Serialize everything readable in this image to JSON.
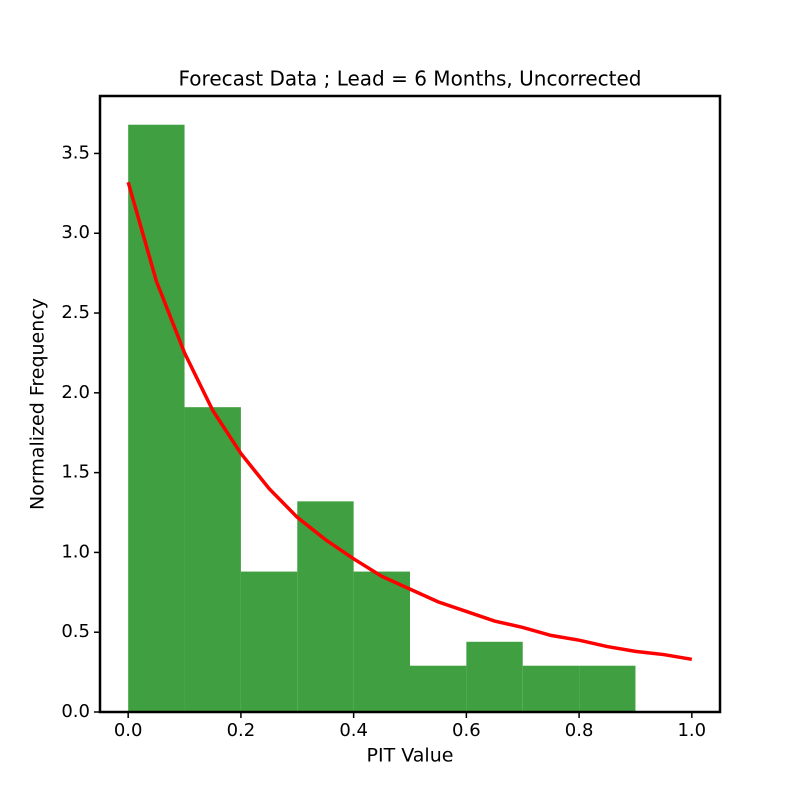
{
  "chart_data": {
    "type": "histogram",
    "title": "Forecast Data ; Lead = 6 Months, Uncorrected",
    "x_label": "PIT Value",
    "y_label": "Normalized Frequency",
    "bins": [
      0,
      0.1,
      0.2,
      0.3,
      0.4,
      0.5,
      0.6,
      0.7,
      0.8,
      0.9
    ],
    "values": [
      3.68,
      1.91,
      0.88,
      1.32,
      0.88,
      0.29,
      0.44,
      0.29,
      0.29
    ],
    "color": "#409f40",
    "fit": {
      "color": "#ff0000",
      "x": [
        0,
        0.05,
        0.1,
        0.15,
        0.2,
        0.25,
        0.3,
        0.35,
        0.4,
        0.45,
        0.5,
        0.55,
        0.6,
        0.65,
        0.7,
        0.75,
        0.8,
        0.85,
        0.9,
        0.95,
        1.0
      ],
      "values": [
        3.32,
        2.7,
        2.25,
        1.89,
        1.62,
        1.4,
        1.22,
        1.08,
        0.96,
        0.85,
        0.77,
        0.69,
        0.63,
        0.57,
        0.53,
        0.48,
        0.45,
        0.41,
        0.38,
        0.36,
        0.33
      ]
    },
    "xlim": [
      -0.05,
      1.05
    ],
    "ylim": [
      0,
      3.86
    ],
    "xticks": [
      {
        "value": 0,
        "label": "0.0"
      },
      0.2,
      0.4,
      0.6,
      0.8,
      {
        "value": 1,
        "label": "1.0"
      }
    ],
    "yticks": [
      {
        "value": 0,
        "label": "0.0"
      },
      0.5,
      {
        "value": 1,
        "label": "1.0"
      },
      1.5,
      {
        "value": 2,
        "label": "2.0"
      },
      2.5,
      {
        "value": 3,
        "label": "3.0"
      },
      3.5
    ],
    "grid": false
  }
}
